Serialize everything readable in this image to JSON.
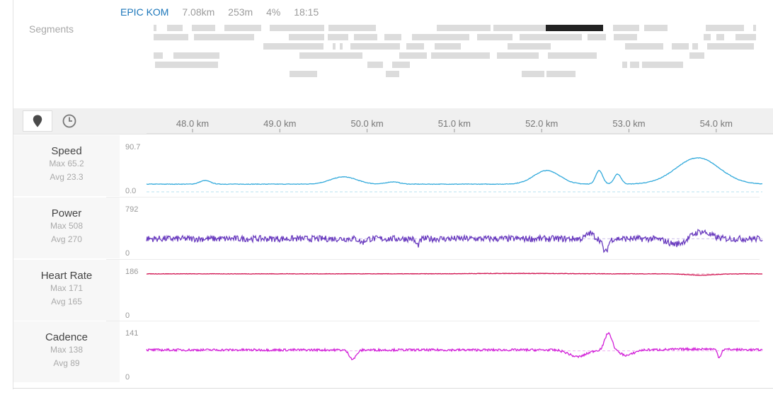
{
  "segment": {
    "name": "EPIC KOM",
    "distance": "7.08km",
    "elevation": "253m",
    "grade": "4%",
    "time": "18:15"
  },
  "segments_label": "Segments",
  "toolbar": {
    "distance_mode_icon": "location-pin-icon",
    "time_mode_icon": "clock-icon"
  },
  "x_axis": {
    "ticks": [
      "48.0 km",
      "49.0 km",
      "50.0 km",
      "51.0 km",
      "52.0 km",
      "53.0 km",
      "54.0 km"
    ],
    "tick_values_km": [
      48,
      49,
      50,
      51,
      52,
      53,
      54
    ]
  },
  "streams": [
    {
      "key": "speed",
      "title": "Speed",
      "max_label": "Max 65.2",
      "avg_label": "Avg 23.3",
      "ymax": "90.7",
      "ymin": "0.0",
      "color": "#31a9db"
    },
    {
      "key": "power",
      "title": "Power",
      "max_label": "Max 508",
      "avg_label": "Avg 270",
      "ymax": "792",
      "ymin": "0",
      "color": "#6a3cbf"
    },
    {
      "key": "heartrate",
      "title": "Heart Rate",
      "max_label": "Max 171",
      "avg_label": "Avg 165",
      "ymax": "186",
      "ymin": "0",
      "color": "#d0114f"
    },
    {
      "key": "cadence",
      "title": "Cadence",
      "max_label": "Max 138",
      "avg_label": "Avg 89",
      "ymax": "141",
      "ymin": "0",
      "color": "#d21fd8"
    }
  ],
  "segment_highlight_color": "#222222"
}
